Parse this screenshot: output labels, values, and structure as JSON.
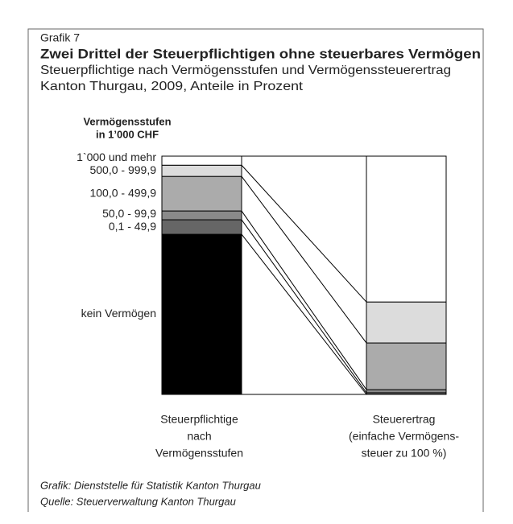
{
  "chart_data": {
    "type": "stacked_bar",
    "label": "Grafik 7",
    "title": "Zwei Drittel der Steuerpflichtigen ohne steuerbares Vermögen",
    "subtitle": [
      "Steuerpflichtige nach Vermögensstufen und Vermögenssteuerertrag",
      "Kanton Thurgau, 2009, Anteile in Prozent"
    ],
    "legend_title": [
      "Vermögensstufen",
      "in 1’000 CHF"
    ],
    "categories": [
      [
        "Steuerpflichtige",
        "nach",
        "Vermögensstufen"
      ],
      [
        "Steuerertrag",
        "(einfache Vermögens-",
        "steuer zu 100 %)"
      ]
    ],
    "ylim": [
      0,
      100
    ],
    "series": [
      {
        "name": "kein Vermögen",
        "color": "#000000",
        "values": [
          67.2,
          0
        ]
      },
      {
        "name": "0,1 - 49,9",
        "color": "#666666",
        "values": [
          6.1,
          0.7
        ]
      },
      {
        "name": "50,0 - 99,9",
        "color": "#8a8a8a",
        "values": [
          3.7,
          1.3
        ]
      },
      {
        "name": "100,0 - 499,9",
        "color": "#ababab",
        "values": [
          14.5,
          19.6
        ]
      },
      {
        "name": "500,0 - 999,9",
        "color": "#dcdcdc",
        "values": [
          4.7,
          17.2
        ]
      },
      {
        "name": "1`000 und mehr",
        "color": "#ffffff",
        "values": [
          3.8,
          61.2
        ]
      }
    ],
    "footer": [
      "Grafik: Dienststelle für Statistik Kanton Thurgau",
      "Quelle: Steuerverwaltung Kanton Thurgau"
    ]
  }
}
